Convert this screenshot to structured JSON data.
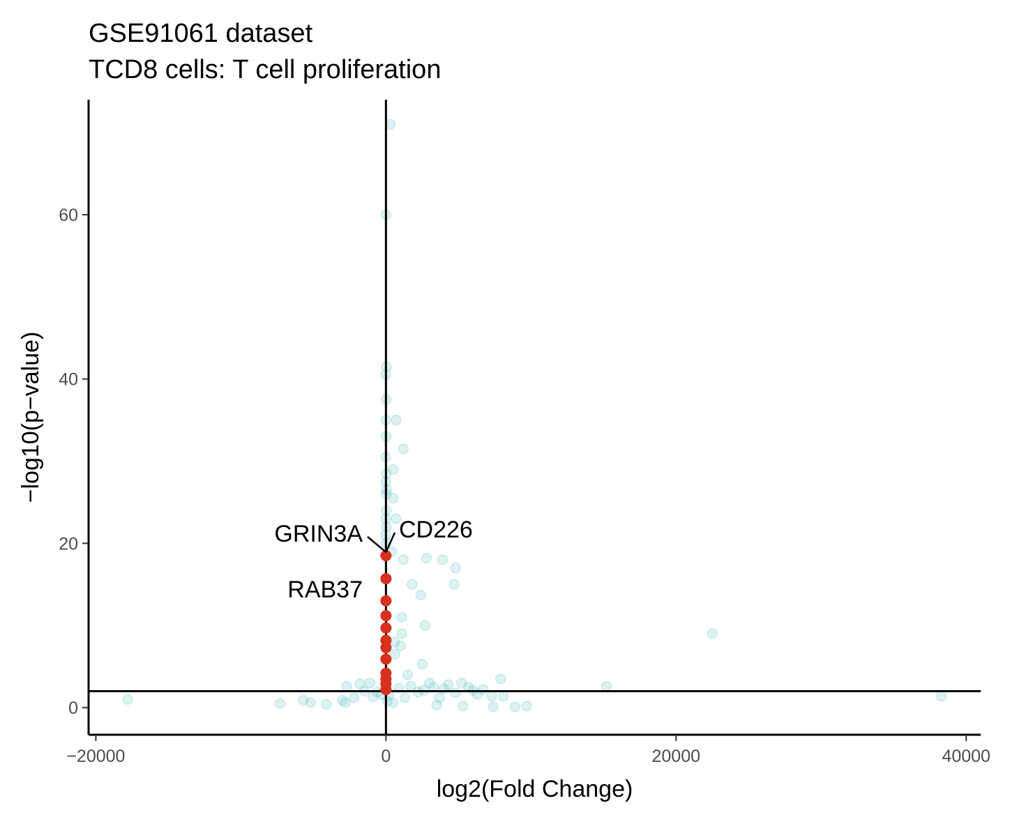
{
  "chart_data": {
    "type": "scatter",
    "title": "GSE91061 dataset",
    "subtitle": "TCD8 cells: T cell proliferation",
    "xlabel": "log2(Fold Change)",
    "ylabel": "−log10(p−value)",
    "xlim": [
      -20500,
      41000
    ],
    "ylim": [
      -3.3,
      74
    ],
    "x_ticks": [
      -20000,
      0,
      20000,
      40000
    ],
    "x_tick_labels": [
      "−20000",
      "0",
      "20000",
      "40000"
    ],
    "y_ticks": [
      0,
      20,
      40,
      60
    ],
    "y_tick_labels": [
      "0",
      "20",
      "40",
      "60"
    ],
    "reference_lines": {
      "vertical_x": 0,
      "horizontal_y": 2
    },
    "colors": {
      "background_points": "#5bc0c2",
      "highlight_points": "#d7301f",
      "axes": "#000000"
    },
    "grid": false,
    "legend": "none",
    "series": [
      {
        "role": "background",
        "points": [
          [
            300,
            71
          ],
          [
            0,
            60
          ],
          [
            30,
            41.5
          ],
          [
            -20,
            40.5
          ],
          [
            20,
            37.5
          ],
          [
            -10,
            35
          ],
          [
            700,
            35
          ],
          [
            20,
            33
          ],
          [
            1200,
            31.5
          ],
          [
            -20,
            30.5
          ],
          [
            500,
            29
          ],
          [
            20,
            28.5
          ],
          [
            -10,
            27.5
          ],
          [
            40,
            26.5
          ],
          [
            10,
            26
          ],
          [
            500,
            25.5
          ],
          [
            20,
            24
          ],
          [
            -10,
            23
          ],
          [
            700,
            23
          ],
          [
            30,
            22
          ],
          [
            -20,
            21
          ],
          [
            10,
            20
          ],
          [
            400,
            19
          ],
          [
            1200,
            18
          ],
          [
            2800,
            18.2
          ],
          [
            3900,
            18
          ],
          [
            4800,
            17
          ],
          [
            1800,
            15
          ],
          [
            4700,
            15
          ],
          [
            2400,
            13.7
          ],
          [
            1100,
            11
          ],
          [
            2700,
            10
          ],
          [
            1100,
            9
          ],
          [
            600,
            8
          ],
          [
            1000,
            7.5
          ],
          [
            600,
            6.5
          ],
          [
            2500,
            5.3
          ],
          [
            1500,
            4
          ],
          [
            7900,
            3.5
          ],
          [
            -17800,
            1
          ],
          [
            -7300,
            0.5
          ],
          [
            -5700,
            0.9
          ],
          [
            -5200,
            0.6
          ],
          [
            -4100,
            0.4
          ],
          [
            -2800,
            0.6
          ],
          [
            -2700,
            2.6
          ],
          [
            -1800,
            2.9
          ],
          [
            -1100,
            3
          ],
          [
            -900,
            1.3
          ],
          [
            -600,
            1.9
          ],
          [
            500,
            0.6
          ],
          [
            1300,
            1.2
          ],
          [
            2200,
            1.9
          ],
          [
            3300,
            2.5
          ],
          [
            3700,
            1.2
          ],
          [
            3500,
            0.3
          ],
          [
            5300,
            0.2
          ],
          [
            6000,
            2.1
          ],
          [
            6300,
            1.6
          ],
          [
            6700,
            2.2
          ],
          [
            7300,
            1.4
          ],
          [
            7400,
            0.1
          ],
          [
            8100,
            1.4
          ],
          [
            8900,
            0.1
          ],
          [
            9700,
            0.2
          ],
          [
            15200,
            2.6
          ],
          [
            22500,
            9
          ],
          [
            38300,
            1.4
          ],
          [
            3000,
            3
          ],
          [
            4300,
            2.8
          ],
          [
            5200,
            3
          ],
          [
            900,
            2.4
          ],
          [
            -300,
            1.6
          ],
          [
            -1500,
            2
          ],
          [
            200,
            1.5
          ],
          [
            1700,
            2.6
          ],
          [
            2600,
            2.1
          ],
          [
            4000,
            2.3
          ],
          [
            4800,
            1.8
          ],
          [
            5700,
            2.5
          ],
          [
            -2200,
            1.2
          ],
          [
            -3000,
            0.9
          ],
          [
            100,
            0.8
          ]
        ]
      },
      {
        "role": "highlighted",
        "points": [
          [
            0,
            18.5
          ],
          [
            0,
            15.7
          ],
          [
            0,
            13
          ],
          [
            0,
            11.2
          ],
          [
            0,
            9.7
          ],
          [
            0,
            8.2
          ],
          [
            0,
            7.3
          ],
          [
            0,
            5.9
          ],
          [
            0,
            4.2
          ],
          [
            0,
            3.5
          ],
          [
            0,
            2.9
          ],
          [
            0,
            2.2
          ]
        ]
      }
    ],
    "annotations": [
      {
        "label": "GRIN3A",
        "x": 0,
        "y": 18.5
      },
      {
        "label": "CD226",
        "x": 0,
        "y": 18.5
      },
      {
        "label": "RAB37",
        "x": 0,
        "y": 15.7
      }
    ]
  }
}
